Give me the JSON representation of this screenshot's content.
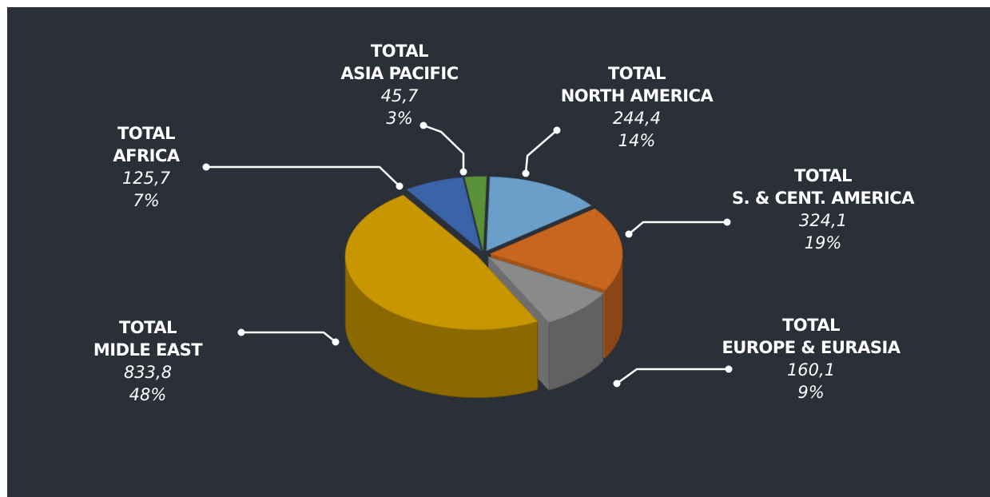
{
  "chart_data": {
    "type": "pie",
    "categories": [
      "TOTAL\nASIA PACIFIC",
      "TOTAL\nNORTH AMERICA",
      "TOTAL\nS. & CENT. AMERICA",
      "TOTAL\nEUROPE & EURASIA",
      "TOTAL\nMIDLE EAST",
      "TOTAL\nAFRICA"
    ],
    "values": [
      45.7,
      244.4,
      324.1,
      160.1,
      833.8,
      125.7
    ],
    "value_labels": [
      "45,7",
      "244,4",
      "324,1",
      "160,1",
      "833,8",
      "125,7"
    ],
    "percents": [
      3,
      14,
      19,
      9,
      48,
      7
    ],
    "percent_labels": [
      "3%",
      "14%",
      "19%",
      "9%",
      "48%",
      "7%"
    ],
    "colors": [
      "#5b9138",
      "#6a9fca",
      "#c8661f",
      "#8a8a8a",
      "#c89600",
      "#3a63a8"
    ]
  }
}
